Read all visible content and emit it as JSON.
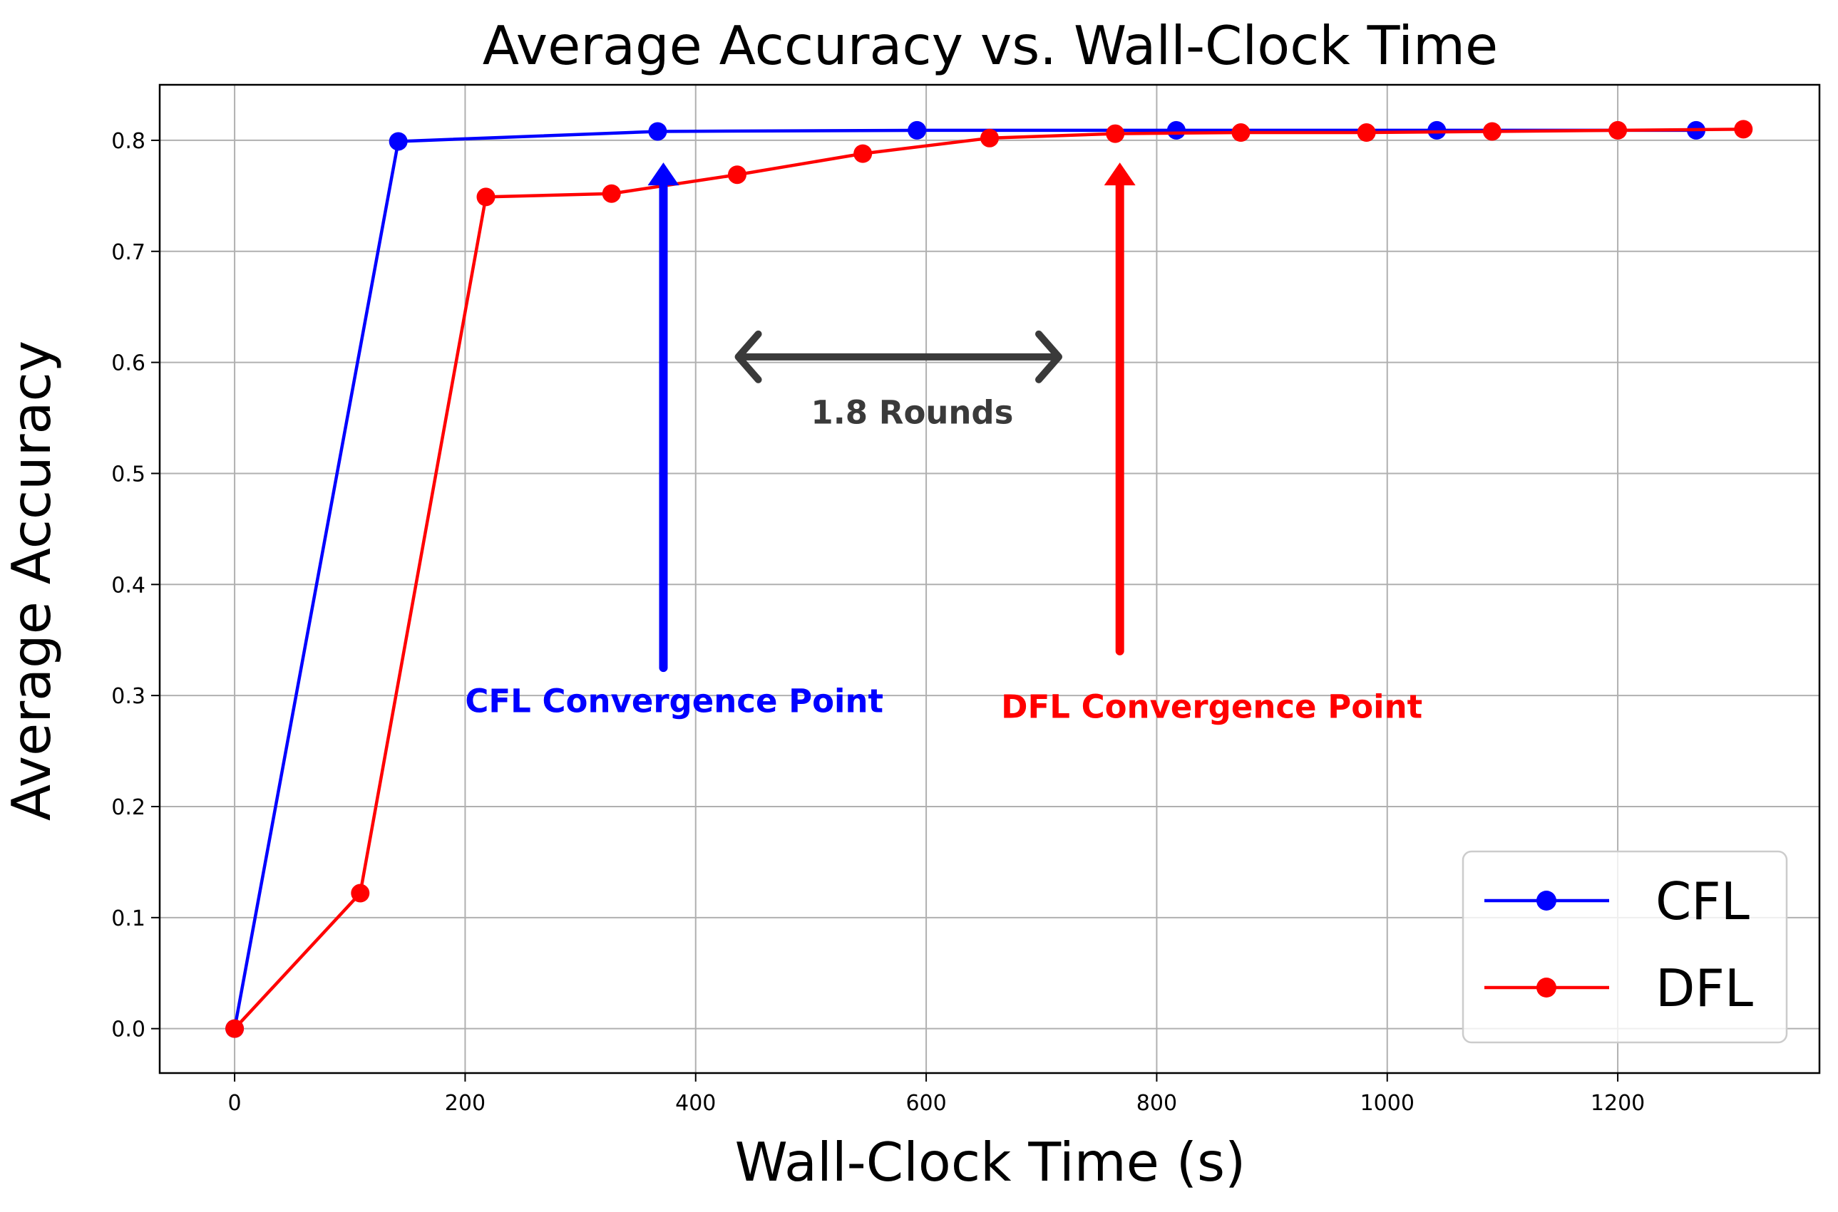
{
  "chart_data": {
    "type": "line",
    "title": "Average Accuracy vs. Wall-Clock Time",
    "xlabel": "Wall-Clock Time (s)",
    "ylabel": "Average Accuracy",
    "xlim": [
      -65,
      1375
    ],
    "ylim": [
      -0.04,
      0.85
    ],
    "xticks": [
      0,
      200,
      400,
      600,
      800,
      1000,
      1200
    ],
    "yticks": [
      0.0,
      0.1,
      0.2,
      0.3,
      0.4,
      0.5,
      0.6,
      0.7,
      0.8
    ],
    "grid": true,
    "legend_position": "bottom-right",
    "series": [
      {
        "name": "CFL",
        "color": "#0000ff",
        "x": [
          0,
          142,
          367,
          592,
          817,
          1043,
          1268
        ],
        "y": [
          0.0,
          0.799,
          0.808,
          0.809,
          0.809,
          0.809,
          0.809
        ]
      },
      {
        "name": "DFL",
        "color": "#ff0000",
        "x": [
          0,
          109,
          218,
          327,
          436,
          545,
          655,
          764,
          873,
          982,
          1091,
          1200,
          1309
        ],
        "y": [
          0.0,
          0.122,
          0.749,
          0.752,
          0.769,
          0.788,
          0.802,
          0.806,
          0.807,
          0.807,
          0.808,
          0.809,
          0.81
        ]
      }
    ],
    "annotations": [
      {
        "id": "cfl",
        "text": "CFL Convergence Point",
        "color": "#0000ff",
        "arrow_x": 372,
        "arrow_y_from": 0.325,
        "arrow_y_to": 0.78,
        "text_x": 200,
        "text_y": 0.285
      },
      {
        "id": "dfl",
        "text": "DFL Convergence Point",
        "color": "#ff0000",
        "arrow_x": 768,
        "arrow_y_from": 0.34,
        "arrow_y_to": 0.78,
        "text_x": 665,
        "text_y": 0.28
      },
      {
        "id": "gap",
        "text": "1.8 Rounds",
        "color": "#3a3a3a",
        "arrow_x_from": 437,
        "arrow_x_to": 715,
        "arrow_y": 0.605,
        "text_x": 500,
        "text_y": 0.545
      }
    ]
  }
}
